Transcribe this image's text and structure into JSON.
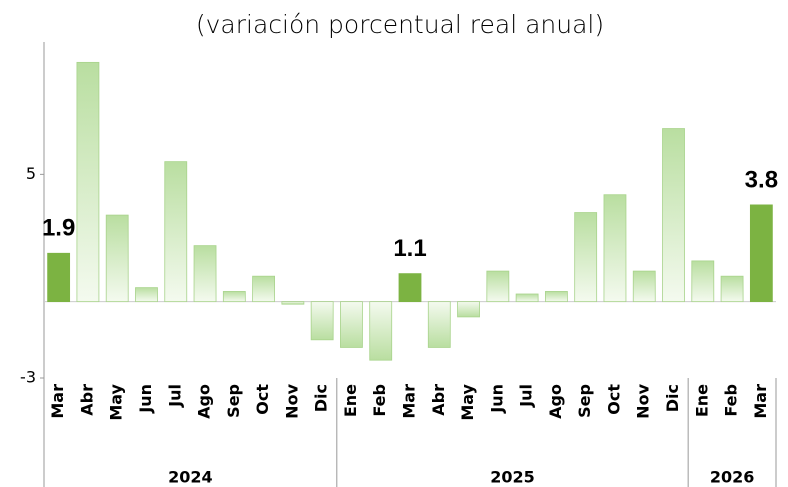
{
  "chart_data": {
    "type": "bar",
    "title": "(variación porcentual real anual)",
    "groups": [
      {
        "name": "2024",
        "categories": [
          "Mar",
          "Abr",
          "May",
          "Jun",
          "Jul",
          "Ago",
          "Sep",
          "Oct",
          "Nov",
          "Dic"
        ]
      },
      {
        "name": "2025",
        "categories": [
          "Ene",
          "Feb",
          "Mar",
          "Abr",
          "May",
          "Jun",
          "Jul",
          "Ago",
          "Sep",
          "Oct",
          "Nov",
          "Dic"
        ]
      },
      {
        "name": "2026",
        "categories": [
          "Ene",
          "Feb",
          "Mar"
        ]
      }
    ],
    "values": [
      1.9,
      9.4,
      3.4,
      0.55,
      5.5,
      2.2,
      0.4,
      1.0,
      -0.1,
      -1.5,
      -1.8,
      -2.3,
      1.1,
      -1.8,
      -0.6,
      1.2,
      0.3,
      0.4,
      3.5,
      4.2,
      1.2,
      6.8,
      1.6,
      1.0,
      3.8
    ],
    "value_labels": [
      "1.9",
      null,
      null,
      null,
      null,
      null,
      null,
      null,
      null,
      null,
      null,
      null,
      "1.1",
      null,
      null,
      null,
      null,
      null,
      null,
      null,
      null,
      null,
      null,
      null,
      "3.8"
    ],
    "color": "#b9dea0",
    "highlight_color": "#7cb342",
    "ylim": [
      -3,
      10.2
    ],
    "yticks": [
      -3,
      5
    ]
  }
}
